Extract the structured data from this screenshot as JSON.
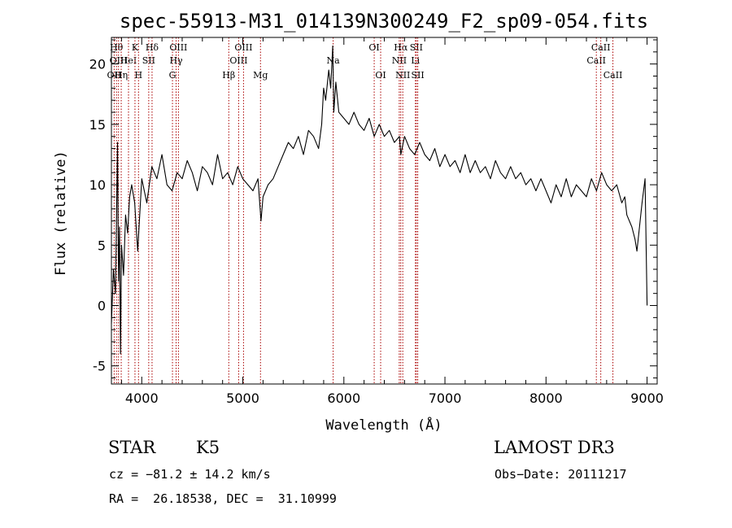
{
  "chart_data": {
    "type": "line",
    "title": "spec-55913-M31_014139N300249_F2_sp09-054.fits",
    "xlabel": "Wavelength (Å)",
    "ylabel": "Flux (relative)",
    "xlim": [
      3700,
      9100
    ],
    "ylim": [
      -6.5,
      22.2
    ],
    "xticks": [
      4000,
      5000,
      6000,
      7000,
      8000,
      9000
    ],
    "yticks": [
      -5,
      0,
      5,
      10,
      15,
      20
    ],
    "grid": false,
    "line_color": "#000000",
    "marker_color": "#aa0000",
    "series": [
      {
        "x": [
          3700,
          3720,
          3740,
          3760,
          3770,
          3780,
          3790,
          3800,
          3820,
          3840,
          3860,
          3880,
          3900,
          3930,
          3960,
          4000,
          4050,
          4100,
          4150,
          4200,
          4250,
          4300,
          4350,
          4400,
          4450,
          4500,
          4550,
          4600,
          4650,
          4700,
          4750,
          4800,
          4850,
          4900,
          4950,
          5000,
          5050,
          5100,
          5150,
          5180,
          5200,
          5250,
          5300,
          5350,
          5400,
          5450,
          5500,
          5550,
          5600,
          5650,
          5700,
          5750,
          5780,
          5800,
          5820,
          5850,
          5870,
          5890,
          5900,
          5920,
          5950,
          6000,
          6050,
          6100,
          6150,
          6200,
          6250,
          6300,
          6350,
          6400,
          6450,
          6500,
          6550,
          6563,
          6600,
          6650,
          6700,
          6750,
          6800,
          6850,
          6900,
          6950,
          7000,
          7050,
          7100,
          7150,
          7200,
          7250,
          7300,
          7350,
          7400,
          7450,
          7500,
          7550,
          7600,
          7650,
          7700,
          7750,
          7800,
          7850,
          7900,
          7950,
          8000,
          8050,
          8100,
          8150,
          8200,
          8250,
          8300,
          8350,
          8400,
          8450,
          8500,
          8550,
          8600,
          8650,
          8700,
          8750,
          8780,
          8800,
          8850,
          8880,
          8900,
          8950,
          8980,
          9000
        ],
        "y": [
          -1.5,
          3.0,
          1.0,
          13.5,
          2.0,
          6.5,
          -4.0,
          5.0,
          2.5,
          7.5,
          6.0,
          9.0,
          10.0,
          8.5,
          4.5,
          10.5,
          8.5,
          11.5,
          10.5,
          12.5,
          10.0,
          9.5,
          11.0,
          10.5,
          12.0,
          11.0,
          9.5,
          11.5,
          11.0,
          10.0,
          12.5,
          10.5,
          11.0,
          10.0,
          11.5,
          10.5,
          10.0,
          9.5,
          10.5,
          7.0,
          9.0,
          10.0,
          10.5,
          11.5,
          12.5,
          13.5,
          13.0,
          14.0,
          12.5,
          14.5,
          14.0,
          13.0,
          15.0,
          18.0,
          17.0,
          19.5,
          18.0,
          21.5,
          16.0,
          18.5,
          16.0,
          15.5,
          15.0,
          16.0,
          15.0,
          14.5,
          15.5,
          14.0,
          15.0,
          14.0,
          14.5,
          13.5,
          14.0,
          12.5,
          14.0,
          13.0,
          12.5,
          13.5,
          12.5,
          12.0,
          13.0,
          11.5,
          12.5,
          11.5,
          12.0,
          11.0,
          12.5,
          11.0,
          12.0,
          11.0,
          11.5,
          10.5,
          12.0,
          11.0,
          10.5,
          11.5,
          10.5,
          11.0,
          10.0,
          10.5,
          9.5,
          10.5,
          9.5,
          8.5,
          10.0,
          9.0,
          10.5,
          9.0,
          10.0,
          9.5,
          9.0,
          10.5,
          9.5,
          11.0,
          10.0,
          9.5,
          10.0,
          8.5,
          9.0,
          7.5,
          6.5,
          5.5,
          4.5,
          8.5,
          10.5,
          0.0
        ]
      }
    ],
    "lines": [
      {
        "x": 3727,
        "label": "OII",
        "row": 3
      },
      {
        "x": 3750,
        "label": "Hθ",
        "row": 1
      },
      {
        "x": 3770,
        "label": "OIII",
        "row": 2
      },
      {
        "x": 3797,
        "label": "Hη",
        "row": 3
      },
      {
        "x": 3869,
        "label": "HeI",
        "row": 2
      },
      {
        "x": 3933,
        "label": "K",
        "row": 1
      },
      {
        "x": 3968,
        "label": "H",
        "row": 3
      },
      {
        "x": 4069,
        "label": "SII",
        "row": 2
      },
      {
        "x": 4102,
        "label": "Hδ",
        "row": 1
      },
      {
        "x": 4304,
        "label": "G",
        "row": 3
      },
      {
        "x": 4340,
        "label": "Hγ",
        "row": 2
      },
      {
        "x": 4363,
        "label": "OIII",
        "row": 1
      },
      {
        "x": 4861,
        "label": "Hβ",
        "row": 3
      },
      {
        "x": 4959,
        "label": "OIII",
        "row": 2
      },
      {
        "x": 5007,
        "label": "OIII",
        "row": 1
      },
      {
        "x": 5175,
        "label": "Mg",
        "row": 3
      },
      {
        "x": 5894,
        "label": "Na",
        "row": 2
      },
      {
        "x": 6300,
        "label": "OI",
        "row": 1
      },
      {
        "x": 6364,
        "label": "OI",
        "row": 3
      },
      {
        "x": 6548,
        "label": "NII",
        "row": 2
      },
      {
        "x": 6563,
        "label": "Hα",
        "row": 1
      },
      {
        "x": 6583,
        "label": "NII",
        "row": 3
      },
      {
        "x": 6708,
        "label": "Li",
        "row": 2
      },
      {
        "x": 6717,
        "label": "SII",
        "row": 1
      },
      {
        "x": 6731,
        "label": "SII",
        "row": 3
      },
      {
        "x": 8498,
        "label": "CaII",
        "row": 2
      },
      {
        "x": 8542,
        "label": "CaII",
        "row": 1
      },
      {
        "x": 8662,
        "label": "CaII",
        "row": 3
      }
    ]
  },
  "info": {
    "class": "STAR",
    "subclass": "K5",
    "survey": "LAMOST DR3",
    "cz": "cz = −81.2 ± 14.2 km/s",
    "obs_date": "Obs−Date: 20111217",
    "coords": "RA =  26.18538, DEC =  31.10999"
  }
}
